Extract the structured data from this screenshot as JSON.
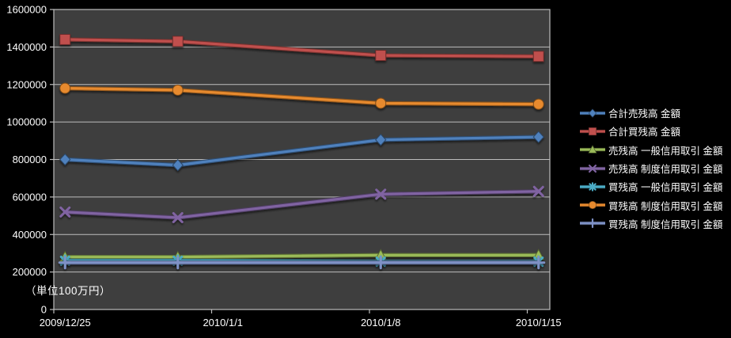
{
  "window": {
    "background": "#000000"
  },
  "chart_data": {
    "type": "line",
    "title": "",
    "unit_label": "（単位100万円）",
    "grid": true,
    "legend_position": "right",
    "plot_bg": "#3E3E3E",
    "grid_color": "#BDBDBD",
    "text_color": "#FFFFFF",
    "x_axis": {
      "tick_labels": [
        "2009/12/25",
        "2010/1/1",
        "2010/1/8",
        "2010/1/15"
      ],
      "tick_days": [
        0,
        7,
        14,
        21
      ],
      "span_days": 22,
      "point_days": [
        0,
        5,
        14,
        21
      ],
      "point_dates": [
        "2009/12/25",
        "2009/12/30",
        "2010/1/8",
        "2010/1/15"
      ]
    },
    "y_axis": {
      "min": 0,
      "max": 1600000,
      "step": 200000,
      "tick_labels": [
        "0",
        "200000",
        "400000",
        "600000",
        "800000",
        "1000000",
        "1200000",
        "1400000",
        "1600000"
      ]
    },
    "series": [
      {
        "name": "合計売残高 金額",
        "color": "#4F81BD",
        "marker": "diamond",
        "values": [
          800000,
          770000,
          905000,
          920000
        ]
      },
      {
        "name": "合計買残高 金額",
        "color": "#C0504D",
        "marker": "square",
        "values": [
          1440000,
          1430000,
          1355000,
          1350000
        ]
      },
      {
        "name": "売残高 一般信用取引 金額",
        "color": "#9BBB59",
        "marker": "triangle",
        "values": [
          280000,
          280000,
          290000,
          290000
        ]
      },
      {
        "name": "売残高 制度信用取引 金額",
        "color": "#8064A2",
        "marker": "x",
        "values": [
          520000,
          490000,
          615000,
          630000
        ]
      },
      {
        "name": "買残高 一般信用取引 金額",
        "color": "#4BACC6",
        "marker": "asterisk",
        "values": [
          260000,
          260000,
          255000,
          255000
        ]
      },
      {
        "name": "買残高 制度信用取引 金額",
        "color": "#E78A2E",
        "marker": "circle",
        "values": [
          1180000,
          1170000,
          1100000,
          1095000
        ]
      },
      {
        "name": "買残高 制度信用取引 金額",
        "color": "#7E91C6",
        "marker": "plus",
        "values": [
          250000,
          250000,
          250000,
          250000
        ]
      }
    ]
  }
}
